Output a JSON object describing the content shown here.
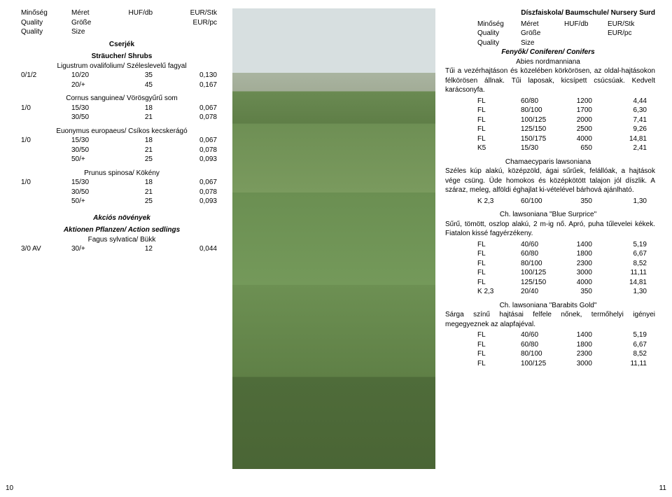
{
  "left": {
    "headers": {
      "r1c1": "Minőség",
      "r1c2": "Méret",
      "r1c3": "HUF/db",
      "r1c4": "EUR/Stk",
      "r2c1": "Quality",
      "r2c2": "Größe",
      "r2c4": "EUR/pc",
      "r3c1": "Quality",
      "r3c2": "Size"
    },
    "section1": "Cserjék",
    "section1b": "Sträucher/ Shrubs",
    "sp1": "Ligustrum ovalifolium/ Széleslevelű fagyal",
    "sp1rows": [
      [
        "0/1/2",
        "10/20",
        "35",
        "0,130"
      ],
      [
        "",
        "20/+",
        "45",
        "0,167"
      ]
    ],
    "sp2": "Cornus sanguinea/ Vörösgyűrű som",
    "sp2rows": [
      [
        "1/0",
        "15/30",
        "18",
        "0,067"
      ],
      [
        "",
        "30/50",
        "21",
        "0,078"
      ]
    ],
    "sp3": "Euonymus europaeus/ Csíkos kecskerágó",
    "sp3rows": [
      [
        "1/0",
        "15/30",
        "18",
        "0,067"
      ],
      [
        "",
        "30/50",
        "21",
        "0,078"
      ],
      [
        "",
        "50/+",
        "25",
        "0,093"
      ]
    ],
    "sp4": "Prunus spinosa/ Kökény",
    "sp4rows": [
      [
        "1/0",
        "15/30",
        "18",
        "0,067"
      ],
      [
        "",
        "30/50",
        "21",
        "0,078"
      ],
      [
        "",
        "50/+",
        "25",
        "0,093"
      ]
    ],
    "section2a": "Akciós növények",
    "section2b": "Aktionen Pflanzen/ Action sedlings",
    "sp5": "Fagus sylvatica/ Bükk",
    "sp5rows": [
      [
        "3/0 AV",
        "30/+",
        "12",
        "0,044"
      ]
    ],
    "pageNum": "10"
  },
  "right": {
    "title": "Díszfaiskola/ Baumschule/ Nursery Surd",
    "headers": {
      "r1c1": "Minőség",
      "r1c2": "Méret",
      "r1c3": "HUF/db",
      "r1c4": "EUR/Stk",
      "r2c1": "Quality",
      "r2c2": "Größe",
      "r2c4": "EUR/pc",
      "r3c1": "Quality",
      "r3c2": "Size"
    },
    "section1": "Fenyők/ Coniferen/ Conifers",
    "sp1": "Abies nordmanniana",
    "desc1": "Tűi a vezérhajtáson és közelében körkörösen, az oldal-hajtásokon félkörösen állnak. Tűi laposak, kicsípett csúcsúak. Kedvelt karácsonyfa.",
    "sp1rows": [
      [
        "",
        "FL",
        "60/80",
        "1200",
        "4,44"
      ],
      [
        "",
        "FL",
        "80/100",
        "1700",
        "6,30"
      ],
      [
        "",
        "FL",
        "100/125",
        "2000",
        "7,41"
      ],
      [
        "",
        "FL",
        "125/150",
        "2500",
        "9,26"
      ],
      [
        "",
        "FL",
        "150/175",
        "4000",
        "14,81"
      ],
      [
        "",
        "K5",
        "15/30",
        "650",
        "2,41"
      ]
    ],
    "sp2": "Chamaecyparis lawsoniana",
    "desc2": "Széles kúp alakú, középzöld, ágai sűrűek, felállóak, a hajtások vége csüng. Üde homokos és középkötött talajon jól díszlik. A száraz, meleg, alföldi éghajlat ki-vételével bárhová ajánlható.",
    "sp2rows": [
      [
        "",
        "K 2,3",
        "60/100",
        "350",
        "1,30"
      ]
    ],
    "sp3": "Ch. lawsoniana \"Blue Surprice\"",
    "desc3": "Sűrű, tömött, oszlop alakú, 2 m-ig nő. Apró, puha tűlevelei kékek. Fiatalon kissé fagyérzékeny.",
    "sp3rows": [
      [
        "",
        "FL",
        "40/60",
        "1400",
        "5,19"
      ],
      [
        "",
        "FL",
        "60/80",
        "1800",
        "6,67"
      ],
      [
        "",
        "FL",
        "80/100",
        "2300",
        "8,52"
      ],
      [
        "",
        "FL",
        "100/125",
        "3000",
        "11,11"
      ],
      [
        "",
        "FL",
        "125/150",
        "4000",
        "14,81"
      ],
      [
        "",
        "K 2,3",
        "20/40",
        "350",
        "1,30"
      ]
    ],
    "sp4": "Ch. lawsoniana \"Barabits Gold\"",
    "desc4": "Sárga színű hajtásai felfele nőnek, termőhelyi igényei megegyeznek az alapfajéval.",
    "sp4rows": [
      [
        "",
        "FL",
        "40/60",
        "1400",
        "5,19"
      ],
      [
        "",
        "FL",
        "60/80",
        "1800",
        "6,67"
      ],
      [
        "",
        "FL",
        "80/100",
        "2300",
        "8,52"
      ],
      [
        "",
        "FL",
        "100/125",
        "3000",
        "11,11"
      ]
    ],
    "pageNum": "11"
  }
}
